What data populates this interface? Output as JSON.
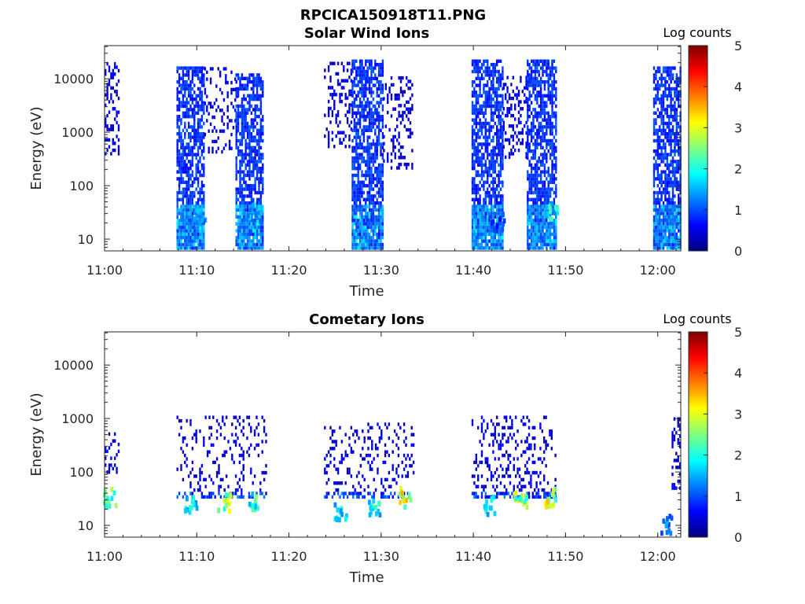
{
  "figure_title": "RPCICA150918T11.PNG",
  "colormap": [
    "#00007f",
    "#0000ff",
    "#007fff",
    "#00ffff",
    "#7fff7f",
    "#ffff00",
    "#ff7f00",
    "#ff0000",
    "#7f0000"
  ],
  "chart_data": [
    {
      "type": "heatmap",
      "title": "Solar Wind Ions",
      "xlabel": "Time",
      "ylabel": "Energy (eV)",
      "xticks": [
        "11:00",
        "11:10",
        "11:20",
        "11:30",
        "11:40",
        "11:50",
        "12:00"
      ],
      "yticks": [
        "10",
        "100",
        "1000",
        "10000"
      ],
      "ytick_values": [
        10,
        100,
        1000,
        10000
      ],
      "xlim_minutes": [
        0,
        62.5
      ],
      "ylim_log10": [
        0.78,
        4.62
      ],
      "yscale": "log",
      "colorbar": {
        "label": "Log counts",
        "ticks": [
          "0",
          "1",
          "2",
          "3",
          "4",
          "5"
        ],
        "range": [
          0,
          5
        ]
      },
      "bursts": [
        {
          "t": [
            0.0,
            1.5
          ],
          "e": [
            2.5,
            4.3
          ],
          "dens": 0.35,
          "val": 0.2
        },
        {
          "t": [
            7.8,
            10.8
          ],
          "e": [
            0.8,
            4.2
          ],
          "dens": 0.7,
          "val": 0.6
        },
        {
          "t": [
            10.8,
            14.3
          ],
          "e": [
            2.6,
            4.2
          ],
          "dens": 0.2,
          "val": 0.2
        },
        {
          "t": [
            14.2,
            17.2
          ],
          "e": [
            0.8,
            4.1
          ],
          "dens": 0.7,
          "val": 0.6
        },
        {
          "t": [
            23.8,
            26.8
          ],
          "e": [
            2.7,
            4.3
          ],
          "dens": 0.25,
          "val": 0.2
        },
        {
          "t": [
            26.8,
            30.2
          ],
          "e": [
            0.8,
            4.3
          ],
          "dens": 0.7,
          "val": 0.6
        },
        {
          "t": [
            30.2,
            33.3
          ],
          "e": [
            2.3,
            4.0
          ],
          "dens": 0.25,
          "val": 0.2
        },
        {
          "t": [
            39.8,
            43.2
          ],
          "e": [
            0.8,
            4.3
          ],
          "dens": 0.7,
          "val": 0.6
        },
        {
          "t": [
            43.2,
            45.8
          ],
          "e": [
            2.5,
            4.0
          ],
          "dens": 0.3,
          "val": 0.2
        },
        {
          "t": [
            45.8,
            49.0
          ],
          "e": [
            0.8,
            4.3
          ],
          "dens": 0.7,
          "val": 0.6
        },
        {
          "t": [
            59.5,
            62.5
          ],
          "e": [
            0.8,
            4.2
          ],
          "dens": 0.7,
          "val": 0.6
        }
      ],
      "hotspots": [
        {
          "t": 10.2,
          "e": 1.4,
          "val": 1.8
        },
        {
          "t": 16.1,
          "e": 1.45,
          "val": 1.9
        },
        {
          "t": 48.3,
          "e": 1.5,
          "val": 2.3
        },
        {
          "t": 42.5,
          "e": 1.3,
          "val": 1.2
        }
      ]
    },
    {
      "type": "heatmap",
      "title": "Cometary Ions",
      "xlabel": "Time",
      "ylabel": "Energy (eV)",
      "xticks": [
        "11:00",
        "11:10",
        "11:20",
        "11:30",
        "11:40",
        "11:50",
        "12:00"
      ],
      "yticks": [
        "10",
        "100",
        "1000",
        "10000"
      ],
      "ytick_values": [
        10,
        100,
        1000,
        10000
      ],
      "xlim_minutes": [
        0,
        62.5
      ],
      "ylim_log10": [
        0.78,
        4.62
      ],
      "yscale": "log",
      "colorbar": {
        "label": "Log counts",
        "ticks": [
          "0",
          "1",
          "2",
          "3",
          "4",
          "5"
        ],
        "range": [
          0,
          5
        ]
      },
      "bursts": [
        {
          "t": [
            0.0,
            1.5
          ],
          "e": [
            1.9,
            2.7
          ],
          "dens": 0.3,
          "val": 0.2
        },
        {
          "t": [
            7.8,
            17.5
          ],
          "e": [
            1.5,
            3.0
          ],
          "dens": 0.15,
          "val": 0.2
        },
        {
          "t": [
            23.8,
            33.5
          ],
          "e": [
            1.5,
            2.9
          ],
          "dens": 0.2,
          "val": 0.2
        },
        {
          "t": [
            39.8,
            49.0
          ],
          "e": [
            1.5,
            3.0
          ],
          "dens": 0.22,
          "val": 0.2
        },
        {
          "t": [
            61.5,
            62.5
          ],
          "e": [
            1.6,
            3.0
          ],
          "dens": 0.3,
          "val": 0.2
        }
      ],
      "hotspots": [
        {
          "t": 0.4,
          "e": 1.5,
          "val": 3.0
        },
        {
          "t": 9.3,
          "e": 1.35,
          "val": 2.2
        },
        {
          "t": 12.9,
          "e": 1.4,
          "val": 3.4
        },
        {
          "t": 15.9,
          "e": 1.45,
          "val": 2.6
        },
        {
          "t": 25.5,
          "e": 1.2,
          "val": 2.2
        },
        {
          "t": 29.2,
          "e": 1.35,
          "val": 2.4
        },
        {
          "t": 32.4,
          "e": 1.5,
          "val": 3.8
        },
        {
          "t": 41.6,
          "e": 1.35,
          "val": 2.4
        },
        {
          "t": 45.0,
          "e": 1.45,
          "val": 3.3
        },
        {
          "t": 48.1,
          "e": 1.5,
          "val": 3.6
        },
        {
          "t": 60.8,
          "e": 1.0,
          "val": 1.6
        }
      ]
    }
  ]
}
